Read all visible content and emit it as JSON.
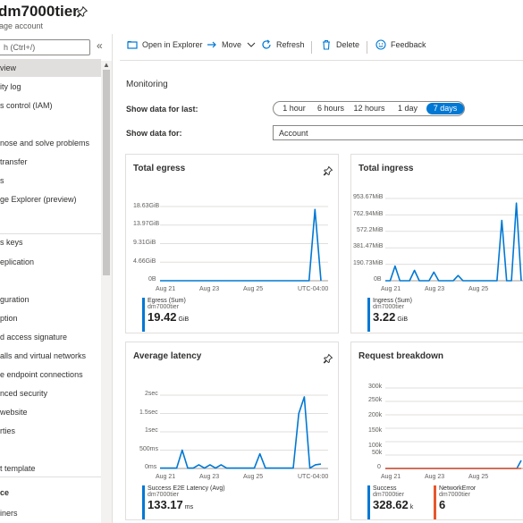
{
  "header": {
    "title": "dm7000tier",
    "subtitle": "rage account"
  },
  "nav": {
    "search_placeholder": "h (Ctrl+/)",
    "collapse": "«",
    "items": [
      {
        "label": "view",
        "active": true
      },
      {
        "label": "ity log"
      },
      {
        "label": "s control (IAM)"
      },
      {
        "label": ""
      },
      {
        "label": "nose and solve problems"
      },
      {
        "label": "transfer"
      },
      {
        "label": "s"
      },
      {
        "label": "ge Explorer (preview)"
      },
      {
        "label": "s keys"
      },
      {
        "label": "eplication"
      },
      {
        "label": "guration"
      },
      {
        "label": "ption"
      },
      {
        "label": "d access signature"
      },
      {
        "label": "alls and virtual networks"
      },
      {
        "label": "e endpoint connections"
      },
      {
        "label": "nced security"
      },
      {
        "label": "website"
      },
      {
        "label": "rties"
      },
      {
        "label": "t template"
      },
      {
        "label": "ce"
      },
      {
        "label": "iners"
      }
    ]
  },
  "toolbar": {
    "open_in_explorer": "Open in Explorer",
    "move": "Move",
    "refresh": "Refresh",
    "delete": "Delete",
    "feedback": "Feedback"
  },
  "monitoring": {
    "title": "Monitoring",
    "show_last_label": "Show data for last:",
    "ranges": [
      "1 hour",
      "6 hours",
      "12 hours",
      "1 day",
      "7 days"
    ],
    "selected_range": "7 days",
    "show_for_label": "Show data for:",
    "show_for_value": "Account"
  },
  "colors": {
    "accent": "#0078d4",
    "error": "#e8562e"
  },
  "cards": {
    "egress": {
      "title": "Total egress",
      "yticks": [
        "18.63GiB",
        "13.97GiB",
        "9.31GiB",
        "4.66GiB",
        "0B"
      ],
      "xticks": [
        "Aug 21",
        "Aug 23",
        "Aug 25",
        "UTC-04:00"
      ],
      "legend": {
        "name": "Egress (Sum)",
        "resource": "dm7000tier",
        "value": "19.42",
        "unit": "GiB"
      }
    },
    "ingress": {
      "title": "Total ingress",
      "yticks": [
        "953.67MiB",
        "762.94MiB",
        "572.2MiB",
        "381.47MiB",
        "190.73MiB",
        "0B"
      ],
      "xticks": [
        "Aug 21",
        "Aug 23",
        "Aug 25"
      ],
      "legend": {
        "name": "Ingress (Sum)",
        "resource": "dm7000tier",
        "value": "3.22",
        "unit": "GiB"
      }
    },
    "latency": {
      "title": "Average latency",
      "yticks": [
        "2sec",
        "1.5sec",
        "1sec",
        "500ms",
        "0ms"
      ],
      "xticks": [
        "Aug 21",
        "Aug 23",
        "Aug 25",
        "UTC-04:00"
      ],
      "legend": {
        "name": "Success E2E Latency (Avg)",
        "resource": "dm7000tier",
        "value": "133.17",
        "unit": "ms"
      }
    },
    "requests": {
      "title": "Request breakdown",
      "yticks": [
        "300k",
        "250k",
        "200k",
        "150k",
        "100k",
        "50k",
        "0"
      ],
      "xticks": [
        "Aug 21",
        "Aug 23",
        "Aug 25"
      ],
      "legend": {
        "name": "Success",
        "resource": "dm7000tier",
        "value": "328.62",
        "unit": "k"
      },
      "legend2": {
        "name": "NetworkError",
        "resource": "dm7000tier",
        "value": "6",
        "unit": ""
      }
    }
  },
  "chart_data": [
    {
      "type": "line",
      "title": "Total egress",
      "unit": "GiB",
      "ylim": [
        0,
        18.63
      ],
      "x_label_ticks": [
        "Aug 21",
        "Aug 23",
        "Aug 25"
      ],
      "series": [
        {
          "name": "Egress (Sum)",
          "values": [
            0,
            0,
            0,
            0,
            0,
            0,
            0,
            0,
            0,
            0,
            0,
            0,
            0,
            0,
            0,
            0,
            0,
            0,
            0,
            0,
            0,
            0,
            0,
            0,
            0,
            0,
            17.9,
            0
          ]
        }
      ]
    },
    {
      "type": "line",
      "title": "Total ingress",
      "unit": "MiB",
      "ylim": [
        0,
        953.67
      ],
      "x_label_ticks": [
        "Aug 21",
        "Aug 23",
        "Aug 25"
      ],
      "series": [
        {
          "name": "Ingress (Sum)",
          "values": [
            0,
            0,
            170,
            0,
            0,
            0,
            120,
            0,
            0,
            0,
            100,
            0,
            0,
            0,
            0,
            60,
            0,
            0,
            0,
            0,
            0,
            0,
            0,
            0,
            700,
            0,
            0,
            900,
            0
          ]
        }
      ]
    },
    {
      "type": "line",
      "title": "Average latency",
      "unit": "ms",
      "ylim": [
        0,
        2000
      ],
      "x_label_ticks": [
        "Aug 21",
        "Aug 23",
        "Aug 25"
      ],
      "series": [
        {
          "name": "Success E2E Latency (Avg)",
          "values": [
            10,
            10,
            10,
            10,
            500,
            10,
            10,
            100,
            10,
            100,
            10,
            100,
            10,
            10,
            10,
            10,
            10,
            10,
            400,
            10,
            10,
            10,
            10,
            10,
            10,
            1500,
            1950,
            10,
            100,
            120
          ]
        }
      ]
    },
    {
      "type": "line",
      "title": "Request breakdown",
      "ylim": [
        0,
        300000
      ],
      "x_label_ticks": [
        "Aug 21",
        "Aug 23",
        "Aug 25"
      ],
      "series": [
        {
          "name": "Success",
          "values": [
            0,
            0,
            0,
            0,
            0,
            0,
            0,
            0,
            0,
            0,
            0,
            0,
            0,
            0,
            0,
            0,
            0,
            0,
            0,
            0,
            0,
            0,
            0,
            0,
            0,
            0,
            0,
            0,
            0,
            0,
            0,
            30000
          ]
        },
        {
          "name": "NetworkError",
          "values": [
            0,
            0,
            0,
            0,
            0,
            0,
            0,
            0,
            0,
            0,
            0,
            0,
            0,
            0,
            0,
            0,
            0,
            0,
            0,
            0,
            0,
            0,
            0,
            0,
            0,
            0,
            0,
            0,
            0,
            0,
            0,
            0
          ]
        }
      ]
    }
  ]
}
